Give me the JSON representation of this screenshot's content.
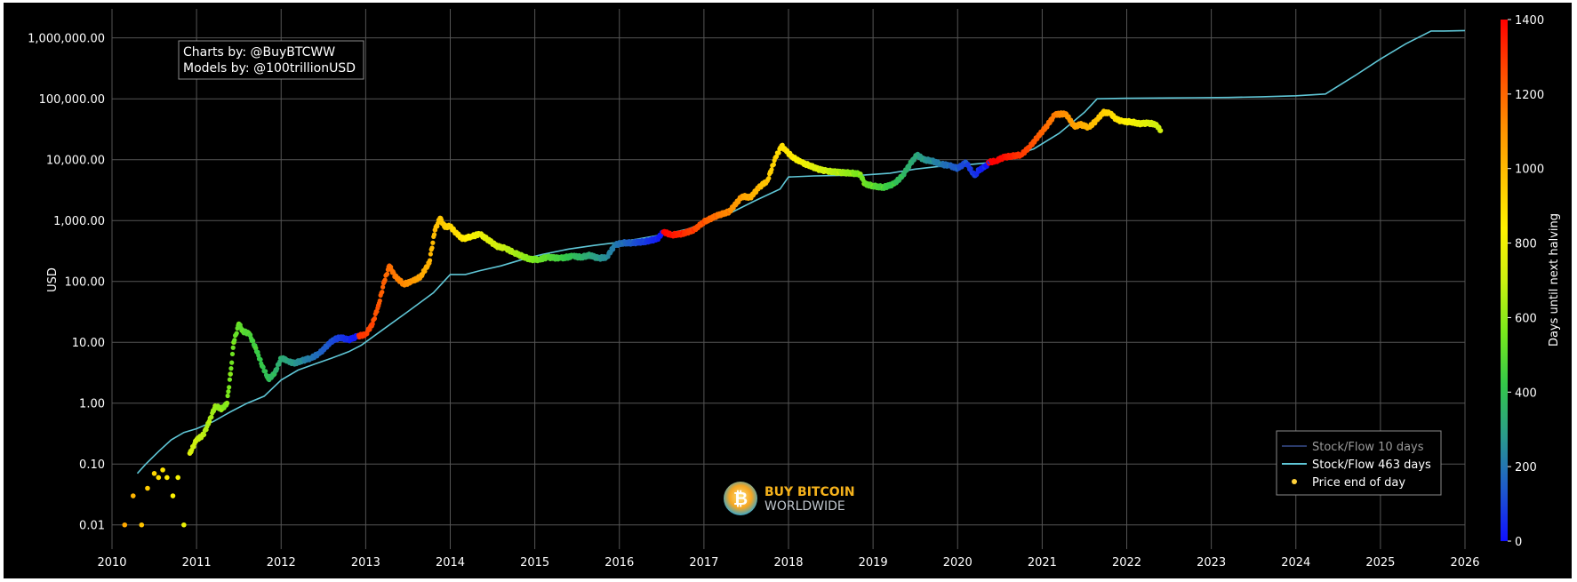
{
  "credits": {
    "line1": "Charts by: @BuyBTCWW",
    "line2": "Models by: @100trillionUSD"
  },
  "watermark": {
    "line1": "BUY BITCOIN",
    "line2": "WORLDWIDE",
    "coin_glyph": "₿"
  },
  "colors": {
    "background": "#000000",
    "sf10": "#2a3a6a",
    "sf463": "#5fc6d6",
    "price_marker": "#ffd23a",
    "grid": "#555555"
  },
  "chart_data": {
    "type": "scatter",
    "title": "",
    "xlabel": "",
    "ylabel": "USD",
    "y_scale": "log",
    "ylim": [
      0.004,
      3000000
    ],
    "xlim": [
      2010,
      2026
    ],
    "x_ticks": [
      "2010",
      "2011",
      "2012",
      "2013",
      "2014",
      "2015",
      "2016",
      "2017",
      "2018",
      "2019",
      "2020",
      "2021",
      "2022",
      "2023",
      "2024",
      "2025",
      "2026"
    ],
    "y_ticks": [
      {
        "value": 0.01,
        "label": "0.01"
      },
      {
        "value": 0.1,
        "label": "0.10"
      },
      {
        "value": 1,
        "label": "1.00"
      },
      {
        "value": 10,
        "label": "10.00"
      },
      {
        "value": 100,
        "label": "100.00"
      },
      {
        "value": 1000,
        "label": "1,000.00"
      },
      {
        "value": 10000,
        "label": "10,000.00"
      },
      {
        "value": 100000,
        "label": "100,000.00"
      },
      {
        "value": 1000000,
        "label": "1,000,000.00"
      }
    ],
    "grid": true,
    "legend": {
      "placement": "bottom-right",
      "items": [
        {
          "name": "Stock/Flow 10 days",
          "kind": "line",
          "color": "#2a3a6a",
          "dim": true
        },
        {
          "name": "Stock/Flow 463 days",
          "kind": "line",
          "color": "#5fc6d6",
          "dim": false
        },
        {
          "name": "Price end of day",
          "kind": "marker",
          "color": "#ffd23a",
          "dim": false
        }
      ]
    },
    "colorbar": {
      "title": "Days until next halving",
      "min": 0,
      "max": 1400,
      "ticks": [
        0,
        200,
        400,
        600,
        800,
        1000,
        1200,
        1400
      ],
      "colors": [
        "#1010ff",
        "#1e5acc",
        "#2a9a8c",
        "#33c84a",
        "#78e81c",
        "#ccf010",
        "#fff200",
        "#ffc000",
        "#ff8c00",
        "#ff4a00",
        "#ff0000"
      ]
    },
    "halvings": [
      2012.91,
      2016.52,
      2020.36,
      2024.3
    ],
    "series": [
      {
        "name": "Stock/Flow 463 days",
        "kind": "line",
        "x": [
          2010.3,
          2010.4,
          2010.55,
          2010.7,
          2010.85,
          2011.0,
          2011.2,
          2011.4,
          2011.6,
          2011.8,
          2012.0,
          2012.2,
          2012.4,
          2012.6,
          2012.8,
          2012.95,
          2013.2,
          2013.5,
          2013.8,
          2014.0,
          2014.18,
          2014.35,
          2014.6,
          2014.9,
          2015.1,
          2015.4,
          2015.7,
          2016.0,
          2016.3,
          2016.55,
          2016.8,
          2017.0,
          2017.3,
          2017.6,
          2017.9,
          2018.0,
          2018.3,
          2018.6,
          2018.9,
          2019.2,
          2019.5,
          2019.8,
          2020.1,
          2020.4,
          2020.6,
          2020.9,
          2021.2,
          2021.5,
          2021.65,
          2022.0,
          2022.4,
          2022.8,
          2023.2,
          2023.6,
          2024.0,
          2024.35,
          2024.7,
          2025.0,
          2025.3,
          2025.6,
          2025.75,
          2026.0
        ],
        "y": [
          0.07,
          0.1,
          0.16,
          0.25,
          0.33,
          0.38,
          0.5,
          0.72,
          1.0,
          1.3,
          2.4,
          3.5,
          4.4,
          5.5,
          7.0,
          9.0,
          16,
          32,
          65,
          130,
          130,
          150,
          180,
          240,
          280,
          340,
          390,
          440,
          520,
          600,
          720,
          900,
          1300,
          2100,
          3300,
          5200,
          5400,
          5500,
          5600,
          6000,
          7000,
          7800,
          8200,
          9000,
          11000,
          15000,
          27000,
          60000,
          100000,
          102000,
          103000,
          104000,
          105000,
          108000,
          112000,
          120000,
          240000,
          450000,
          800000,
          1300000,
          1300000,
          1320000
        ]
      },
      {
        "name": "Price end of day",
        "kind": "points",
        "x": [
          2010.15,
          2010.25,
          2010.35,
          2010.42,
          2010.5,
          2010.55,
          2010.6,
          2010.65,
          2010.72,
          2010.78,
          2010.85,
          2010.92,
          2011.0,
          2011.08,
          2011.15,
          2011.22,
          2011.3,
          2011.36,
          2011.4,
          2011.44,
          2011.5,
          2011.55,
          2011.62,
          2011.7,
          2011.78,
          2011.85,
          2011.92,
          2012.0,
          2012.08,
          2012.15,
          2012.25,
          2012.35,
          2012.45,
          2012.55,
          2012.62,
          2012.7,
          2012.8,
          2012.9,
          2013.0,
          2013.08,
          2013.15,
          2013.22,
          2013.28,
          2013.35,
          2013.45,
          2013.55,
          2013.65,
          2013.75,
          2013.82,
          2013.88,
          2013.93,
          2014.0,
          2014.08,
          2014.15,
          2014.25,
          2014.35,
          2014.45,
          2014.55,
          2014.65,
          2014.75,
          2014.85,
          2014.95,
          2015.05,
          2015.15,
          2015.3,
          2015.45,
          2015.55,
          2015.65,
          2015.75,
          2015.85,
          2015.95,
          2016.05,
          2016.15,
          2016.3,
          2016.45,
          2016.52,
          2016.62,
          2016.75,
          2016.88,
          2017.0,
          2017.15,
          2017.3,
          2017.45,
          2017.55,
          2017.65,
          2017.75,
          2017.85,
          2017.92,
          2017.97,
          2018.05,
          2018.15,
          2018.25,
          2018.35,
          2018.45,
          2018.6,
          2018.75,
          2018.85,
          2018.9,
          2019.0,
          2019.12,
          2019.25,
          2019.35,
          2019.45,
          2019.52,
          2019.6,
          2019.7,
          2019.8,
          2019.9,
          2020.0,
          2020.1,
          2020.18,
          2020.21,
          2020.25,
          2020.32,
          2020.38,
          2020.45,
          2020.55,
          2020.65,
          2020.75,
          2020.85,
          2020.95,
          2021.05,
          2021.15,
          2021.28,
          2021.38,
          2021.45,
          2021.55,
          2021.65,
          2021.72,
          2021.8,
          2021.87,
          2021.95,
          2022.05,
          2022.15,
          2022.25,
          2022.35,
          2022.4
        ],
        "y": [
          0.01,
          0.03,
          0.01,
          0.04,
          0.07,
          0.06,
          0.08,
          0.06,
          0.03,
          0.06,
          0.01,
          0.15,
          0.25,
          0.3,
          0.5,
          0.9,
          0.8,
          1.0,
          3.0,
          10,
          20,
          15,
          14,
          8,
          4,
          2.5,
          3.0,
          5.5,
          5.0,
          4.5,
          5.0,
          5.5,
          6.5,
          9,
          11,
          12,
          11,
          12.5,
          13.5,
          20,
          40,
          100,
          180,
          120,
          90,
          100,
          120,
          200,
          700,
          1100,
          800,
          800,
          600,
          500,
          550,
          600,
          480,
          380,
          350,
          300,
          260,
          230,
          230,
          250,
          240,
          260,
          250,
          270,
          240,
          250,
          400,
          430,
          430,
          450,
          500,
          650,
          580,
          610,
          700,
          950,
          1200,
          1400,
          2500,
          2400,
          3500,
          4500,
          11000,
          17000,
          14000,
          11000,
          9000,
          8000,
          7000,
          6500,
          6200,
          6000,
          5800,
          4000,
          3700,
          3500,
          4000,
          5500,
          9000,
          12000,
          10000,
          9500,
          8500,
          8000,
          7200,
          9000,
          6000,
          5500,
          6800,
          7500,
          9200,
          9500,
          11000,
          11500,
          12000,
          16000,
          24000,
          35000,
          55000,
          57000,
          35000,
          38000,
          34000,
          45000,
          60000,
          58000,
          47000,
          42000,
          42000,
          39000,
          40000,
          38000,
          30000
        ],
        "days_until_halving": [
          1045,
          1010,
          970,
          945,
          915,
          895,
          880,
          860,
          835,
          810,
          785,
          760,
          730,
          700,
          675,
          650,
          620,
          600,
          585,
          570,
          550,
          530,
          505,
          475,
          445,
          420,
          395,
          365,
          335,
          310,
          275,
          240,
          200,
          165,
          140,
          110,
          75,
          40,
          1310,
          1280,
          1255,
          1230,
          1205,
          1180,
          1145,
          1110,
          1070,
          1035,
          1010,
          985,
          970,
          945,
          915,
          890,
          855,
          820,
          780,
          745,
          710,
          675,
          640,
          600,
          565,
          530,
          475,
          420,
          385,
          350,
          310,
          275,
          240,
          205,
          165,
          110,
          55,
          1450,
          1420,
          1370,
          1325,
          1280,
          1225,
          1170,
          1115,
          1080,
          1045,
          1005,
          970,
          945,
          925,
          900,
          865,
          830,
          790,
          755,
          700,
          645,
          610,
          590,
          555,
          510,
          460,
          425,
          390,
          365,
          335,
          300,
          260,
          225,
          190,
          150,
          115,
          105,
          90,
          65,
          45,
          1430,
          1395,
          1355,
          1320,
          1285,
          1245,
          1210,
          1175,
          1130,
          1090,
          1065,
          1030,
          990,
          965,
          935,
          910,
          880,
          845,
          810,
          770,
          735,
          715
        ]
      }
    ]
  }
}
